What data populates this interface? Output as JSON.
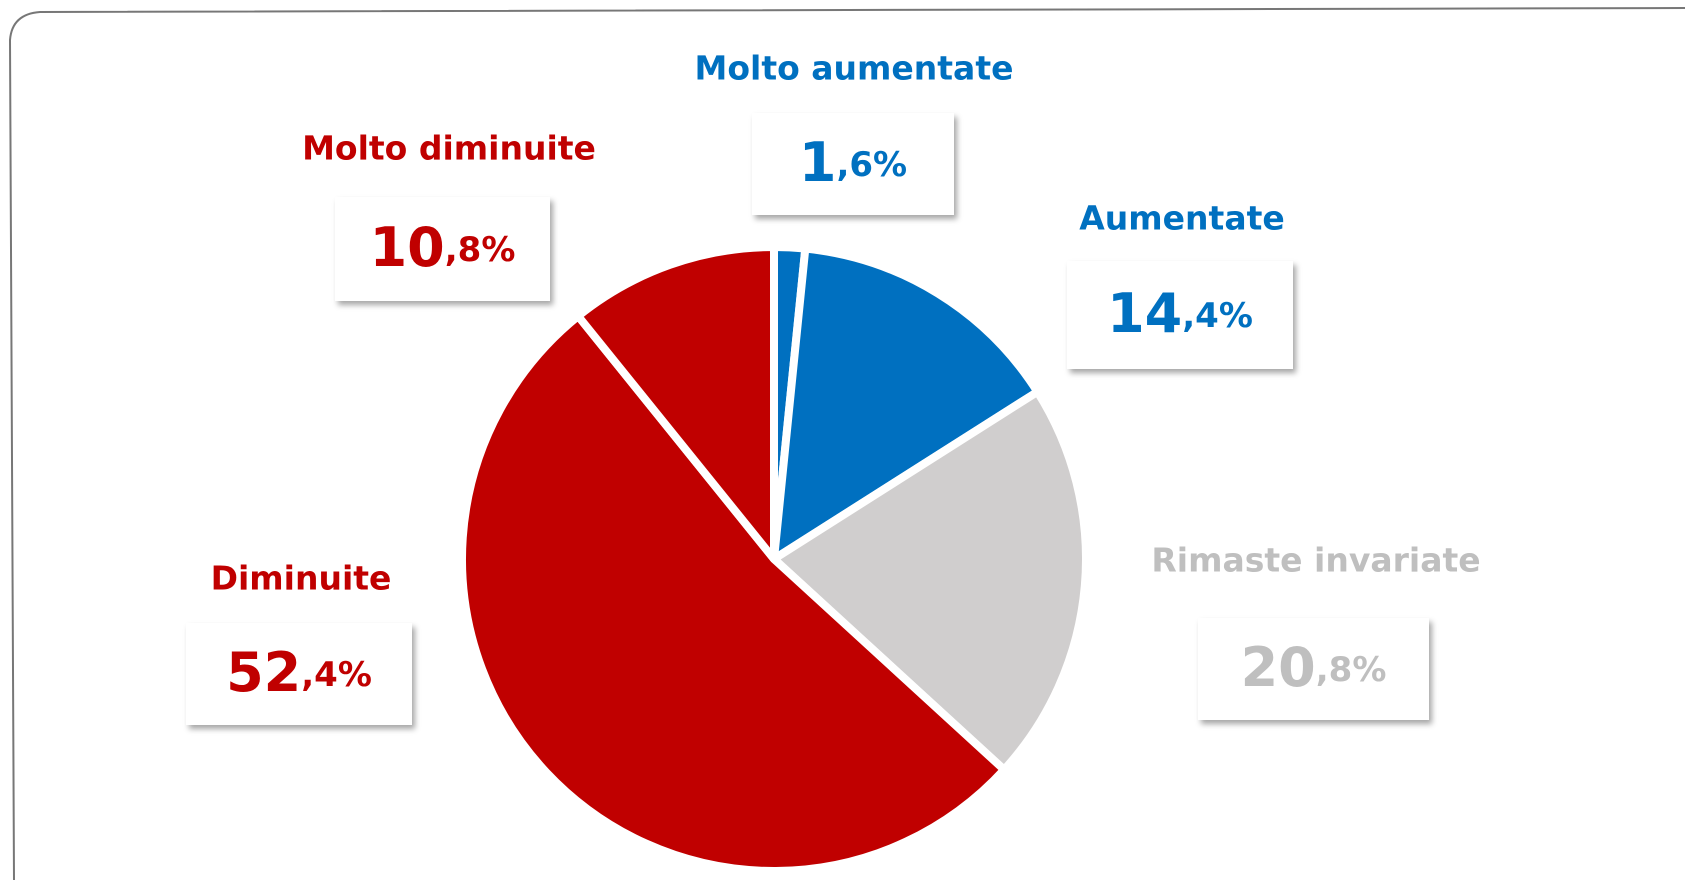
{
  "chart_data": {
    "type": "pie",
    "categories": [
      "Molto aumentate",
      "Aumentate",
      "Rimaste invariate",
      "Diminuite",
      "Molto diminuite"
    ],
    "values": [
      1.6,
      14.4,
      20.8,
      52.4,
      10.8
    ],
    "value_labels": [
      "1,6%",
      "14,4%",
      "20,8%",
      "52,4%",
      "10,8%"
    ],
    "colors": [
      "#0070c0",
      "#0070c0",
      "#d0cece",
      "#c00000",
      "#c00000"
    ],
    "label_colors": [
      "#0070c0",
      "#0070c0",
      "#bfbfbf",
      "#c00000",
      "#c00000"
    ]
  }
}
